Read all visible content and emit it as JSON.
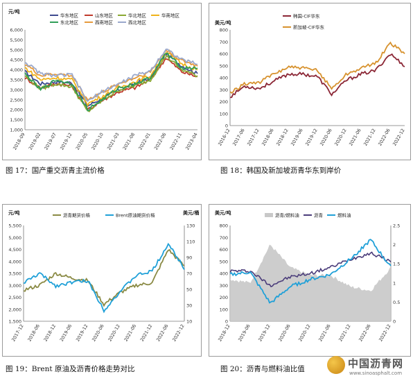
{
  "captions": {
    "c1": "图 17：国产重交沥青主流价格",
    "c2": "图 18：韩国及新加坡沥青华东到岸价",
    "c3": "图 19：Brent 原油及沥青价格走势对比",
    "c4": "图 20：沥青与燃料油比值"
  },
  "watermark": {
    "name": "中国沥青网",
    "url": "www.sinoasphalt.com"
  },
  "colors": {
    "east": "#3d4a8f",
    "shandong": "#c0392b",
    "north": "#8aa832",
    "south": "#f0b31a",
    "northeast": "#2f9e57",
    "southwest": "#e69a3c",
    "northwest": "#9aa8cc",
    "korea": "#8b2635",
    "singapore": "#d7922e",
    "asphalt_fut": "#8a8a44",
    "brent": "#1fa0d8",
    "ratio_area": "#c8c8c8",
    "asphalt_usd": "#4a3c7a",
    "fuel": "#1fa0d8"
  },
  "chart_data": [
    {
      "type": "line",
      "ylabel": "元/吨",
      "ylim": [
        1000,
        6000
      ],
      "yticks": [
        "1,000",
        "1,500",
        "2,000",
        "2,500",
        "3,000",
        "3,500",
        "4,000",
        "4,500",
        "5,000",
        "5,500",
        "6,000"
      ],
      "x": [
        "2018-09",
        "2019-02",
        "2019-07",
        "2019-12",
        "2020-05",
        "2020-10",
        "2021-03",
        "2021-08",
        "2022-01",
        "2022-06",
        "2022-11",
        "2023-04"
      ],
      "series": [
        {
          "name": "华东地区",
          "values": [
            3900,
            3300,
            3400,
            3350,
            2200,
            2600,
            3000,
            3300,
            3600,
            4800,
            4200,
            3800
          ]
        },
        {
          "name": "山东地区",
          "values": [
            3600,
            3100,
            3300,
            3200,
            2000,
            2500,
            2900,
            3100,
            3500,
            4600,
            3900,
            3650
          ]
        },
        {
          "name": "华北地区",
          "values": [
            3700,
            3050,
            3300,
            3150,
            1900,
            2500,
            3000,
            3200,
            3500,
            4700,
            4000,
            3700
          ]
        },
        {
          "name": "华南地区",
          "values": [
            4100,
            3500,
            3600,
            3500,
            2300,
            2700,
            3100,
            3400,
            3700,
            4900,
            4300,
            4000
          ]
        },
        {
          "name": "东北地区",
          "values": [
            3800,
            3000,
            3500,
            3300,
            2000,
            2550,
            3100,
            3300,
            3600,
            4850,
            4100,
            4100
          ]
        },
        {
          "name": "西南地区",
          "values": [
            4300,
            3700,
            3800,
            3700,
            2500,
            2900,
            3300,
            3600,
            3900,
            5000,
            4450,
            4200
          ]
        },
        {
          "name": "西北地区",
          "values": [
            4400,
            3800,
            3700,
            3750,
            2400,
            2950,
            3300,
            3700,
            3950,
            5050,
            4500,
            4300
          ]
        }
      ]
    },
    {
      "type": "line",
      "ylabel": "美元/吨",
      "ylim": [
        0,
        800
      ],
      "yticks": [
        "0",
        "100",
        "200",
        "300",
        "400",
        "500",
        "600",
        "700",
        "800"
      ],
      "x": [
        "2016-12",
        "2017-06",
        "2017-12",
        "2018-06",
        "2018-12",
        "2019-06",
        "2019-12",
        "2020-06",
        "2020-12",
        "2021-06",
        "2021-12",
        "2022-06",
        "2022-12"
      ],
      "series": [
        {
          "name": "韩国-CIF华东",
          "values": [
            240,
            330,
            310,
            370,
            430,
            430,
            410,
            260,
            380,
            430,
            460,
            600,
            500
          ]
        },
        {
          "name": "新加坡-CIF华东",
          "values": [
            270,
            350,
            360,
            430,
            490,
            480,
            460,
            310,
            430,
            480,
            520,
            690,
            600
          ]
        }
      ]
    },
    {
      "type": "line",
      "ylabel_left": "元/吨",
      "ylabel_right": "美元/桶",
      "ylim_left": [
        1500,
        5500
      ],
      "ylim_right": [
        10,
        140
      ],
      "yticks_left": [
        "1,500",
        "2,000",
        "2,500",
        "3,000",
        "3,500",
        "4,000",
        "4,500",
        "5,000",
        "5,500"
      ],
      "yticks_right": [
        "10",
        "30",
        "50",
        "70",
        "90",
        "110",
        "130"
      ],
      "x": [
        "2017-12",
        "2018-06",
        "2018-12",
        "2019-06",
        "2019-12",
        "2020-06",
        "2020-12",
        "2021-06",
        "2021-12",
        "2022-06",
        "2022-12"
      ],
      "series": [
        {
          "name": "沥青期货价格",
          "axis": "left",
          "values": [
            2800,
            3000,
            3500,
            3300,
            3200,
            2200,
            2700,
            3000,
            3100,
            4500,
            3800
          ]
        },
        {
          "name": "Brent原油期货价格",
          "axis": "right",
          "values": [
            62,
            75,
            58,
            63,
            65,
            25,
            50,
            72,
            78,
            115,
            82
          ]
        }
      ]
    },
    {
      "type": "line",
      "ylabel_left": "美元/吨",
      "ylim_left": [
        0,
        800
      ],
      "ylim_right": [
        0,
        2.5
      ],
      "yticks_left": [
        "0",
        "100",
        "200",
        "300",
        "400",
        "500",
        "600",
        "700",
        "800"
      ],
      "yticks_right": [
        "0",
        "0.5",
        "1",
        "1.5",
        "2",
        "2.5"
      ],
      "x": [
        "2018-12",
        "2019-06",
        "2019-12",
        "2020-06",
        "2020-12",
        "2021-06",
        "2021-12",
        "2022-06",
        "2022-12"
      ],
      "series": [
        {
          "name": "沥青/燃料油",
          "axis": "right",
          "values": [
            1.1,
            1.0,
            2.0,
            1.4,
            1.2,
            1.2,
            0.9,
            0.8,
            1.4
          ]
        },
        {
          "name": "沥青",
          "axis": "left",
          "values": [
            420,
            420,
            300,
            370,
            400,
            450,
            520,
            570,
            500
          ]
        },
        {
          "name": "燃料油",
          "axis": "left",
          "values": [
            390,
            410,
            150,
            290,
            350,
            390,
            520,
            680,
            450
          ]
        }
      ]
    }
  ]
}
